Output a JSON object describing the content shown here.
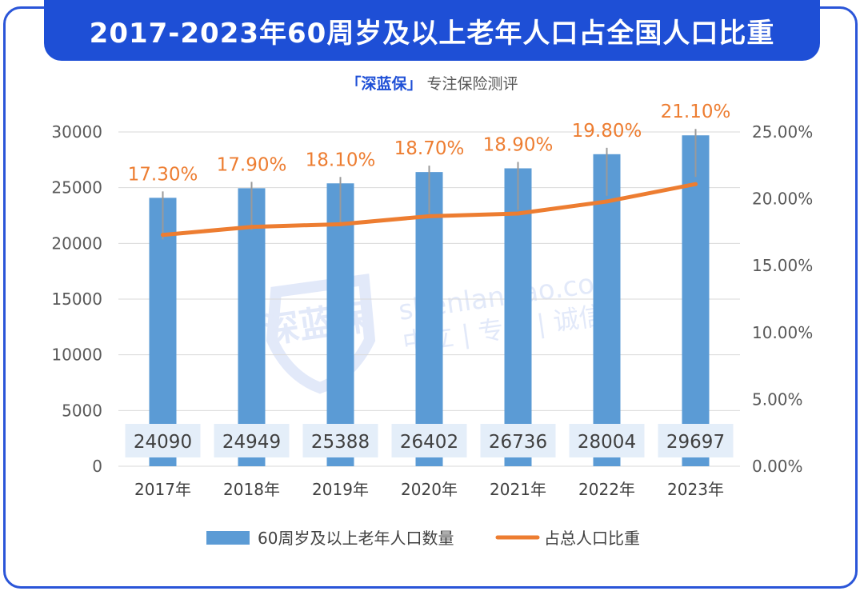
{
  "header": {
    "title": "2017-2023年60周岁及以上老年人口占全国人口比重",
    "brand": "「深蓝保」",
    "tagline": "专注保险测评"
  },
  "watermark": {
    "logo_text": "深蓝保",
    "domain": "shenlanbao.com",
    "slogan": "中立 | 专业 | 诚信"
  },
  "colors": {
    "bar": "#5b9bd5",
    "line": "#ed7d31",
    "title_bg": "#1e4fd6",
    "label_bg": "#e4eef9"
  },
  "chart_data": {
    "type": "bar",
    "categories": [
      "2017年",
      "2018年",
      "2019年",
      "2020年",
      "2021年",
      "2022年",
      "2023年"
    ],
    "series": [
      {
        "name": "60周岁及以上老年人口数量",
        "type": "bar",
        "axis": "left",
        "values": [
          24090,
          24949,
          25388,
          26402,
          26736,
          28004,
          29697
        ],
        "labels": [
          "24090",
          "24949",
          "25388",
          "26402",
          "26736",
          "28004",
          "29697"
        ]
      },
      {
        "name": "占总人口比重",
        "type": "line",
        "axis": "right",
        "values": [
          17.3,
          17.9,
          18.1,
          18.7,
          18.9,
          19.8,
          21.1
        ],
        "labels": [
          "17.30%",
          "17.90%",
          "18.10%",
          "18.70%",
          "18.90%",
          "19.80%",
          "21.10%"
        ]
      }
    ],
    "y_left": {
      "min": 0,
      "max": 30000,
      "ticks": [
        "0",
        "5000",
        "10000",
        "15000",
        "20000",
        "25000",
        "30000"
      ]
    },
    "y_right": {
      "min": 0,
      "max": 25,
      "ticks": [
        "0.00%",
        "5.00%",
        "10.00%",
        "15.00%",
        "20.00%",
        "25.00%"
      ]
    },
    "grid": true,
    "legend": "bottom"
  }
}
